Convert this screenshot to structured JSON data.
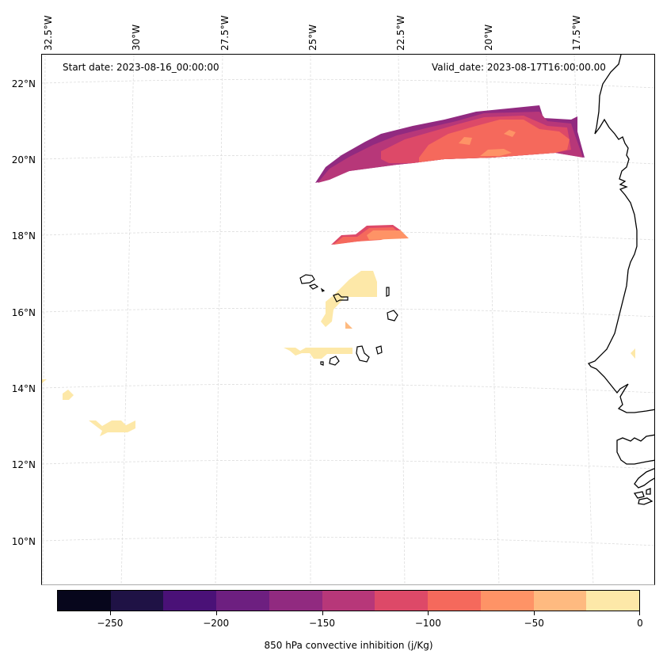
{
  "chart_data": {
    "type": "heatmap",
    "title": "",
    "projection": "lambert-conformal",
    "variable_label": "850 hPa convective inhibition (j/Kg)",
    "annotations": {
      "start_date": "Start date: 2023-08-16_00:00:00",
      "valid_date": "Valid_date: 2023-08-17T16:00:00.00"
    },
    "lon_ticks": [
      "32.5°W",
      "30°W",
      "27.5°W",
      "25°W",
      "22.5°W",
      "20°W",
      "17.5°W"
    ],
    "lat_ticks": [
      "22°N",
      "20°N",
      "18°N",
      "16°N",
      "14°N",
      "12°N",
      "10°N"
    ],
    "lon_range": [
      -32.5,
      -15.5
    ],
    "lat_range": [
      9,
      22.5
    ],
    "gridlines": true,
    "colorbar": {
      "levels": [
        -275,
        -250,
        -225,
        -200,
        -175,
        -150,
        -125,
        -100,
        -75,
        -50,
        -25,
        0
      ],
      "colors": [
        "#07061c",
        "#1f1245",
        "#4a1177",
        "#6d1f80",
        "#912a80",
        "#b73779",
        "#dd4968",
        "#f5695c",
        "#fe9366",
        "#feba80",
        "#fde8a8"
      ],
      "tick_values": [
        -250,
        -200,
        -150,
        -100,
        -50,
        0
      ],
      "tick_labels": [
        "−250",
        "−200",
        "−150",
        "−100",
        "−50",
        "0"
      ],
      "orientation": "horizontal",
      "placement": "bottom"
    },
    "regions": [
      {
        "name": "northern-band",
        "description": "elongated CIN band near 20-21°N, 24°W-17°W",
        "min_level": -175,
        "max_level": -50,
        "dominant_level": -100
      },
      {
        "name": "mid-band",
        "description": "small patch near 18°N, 24°W-22°W",
        "min_level": -125,
        "max_level": -50
      },
      {
        "name": "cape-verde-patch",
        "description": "weak patch near Cape Verde 15-17°N",
        "min_level": -50,
        "max_level": 0
      },
      {
        "name": "southwest-patches",
        "description": "weak patches near 13-14°N, 32°W-30°W",
        "min_level": -25,
        "max_level": 0
      },
      {
        "name": "coast-speck",
        "description": "tiny patch near 15°N, 17°W",
        "min_level": -25,
        "max_level": 0
      }
    ]
  }
}
